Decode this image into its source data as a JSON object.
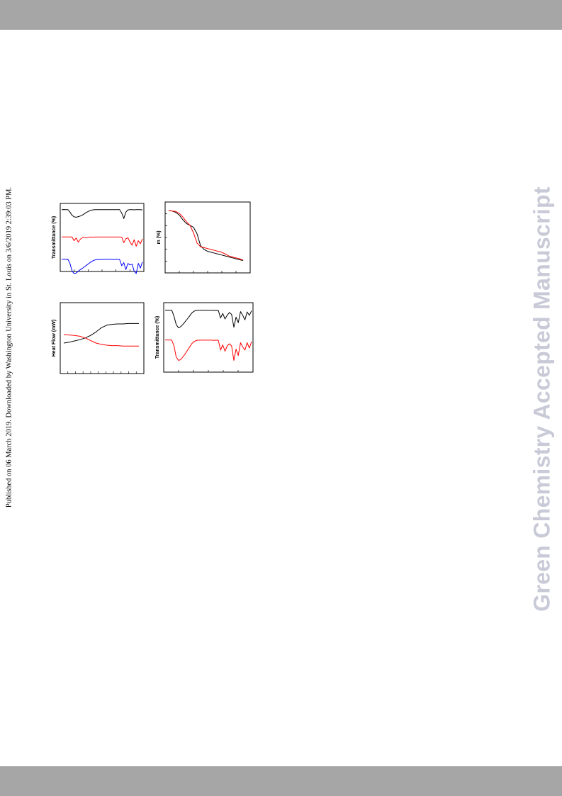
{
  "header_bar": {
    "color": "#a6a6a6"
  },
  "footer_bar": {
    "color": "#a6a6a6"
  },
  "side_note": "Published on 06 March 2019. Downloaded by Washington University in St. Louis on 3/6/2019 2:39:03 PM.",
  "watermark": {
    "text": "Green Chemistry Accepted Manuscript",
    "color": "#c9cad7"
  },
  "chart_data": [
    {
      "type": "line",
      "ylabel": "Transmittance (%)",
      "colors": [
        "#000000",
        "#ff0000",
        "#0000ff"
      ],
      "series": [
        {
          "values": [
            0.05,
            0.04,
            0.06,
            0.05,
            0.3,
            0.62,
            0.78,
            0.82,
            0.76,
            0.7,
            0.6,
            0.46,
            0.33,
            0.22,
            0.12,
            0.08,
            0.06,
            0.05,
            0.05,
            0.05,
            0.05,
            0.05,
            0.05,
            0.05,
            0.06,
            0.05,
            0.06,
            0.05,
            0.05,
            0.4,
            0.95,
            0.3,
            0.08,
            0.06,
            0.05,
            0.07,
            0.06,
            0.05,
            0.06,
            0.08
          ]
        },
        {
          "values": [
            0.02,
            0.02,
            0.02,
            0.02,
            0.03,
            0.02,
            0.4,
            0.12,
            0.55,
            0.25,
            0.1,
            0.05,
            0.12,
            0.06,
            0.03,
            0.04,
            0.03,
            0.03,
            0.03,
            0.03,
            0.03,
            0.03,
            0.03,
            0.03,
            0.03,
            0.03,
            0.03,
            0.03,
            0.03,
            0.05,
            0.6,
            0.2,
            0.1,
            0.55,
            0.85,
            0.3,
            0.95,
            0.4,
            0.7,
            0.2
          ]
        },
        {
          "values": [
            0.03,
            0.03,
            0.04,
            0.03,
            0.3,
            0.78,
            0.95,
            0.92,
            0.8,
            0.7,
            0.62,
            0.52,
            0.42,
            0.32,
            0.22,
            0.14,
            0.08,
            0.06,
            0.05,
            0.05,
            0.04,
            0.04,
            0.04,
            0.04,
            0.04,
            0.05,
            0.04,
            0.04,
            0.05,
            0.45,
            0.25,
            0.7,
            0.3,
            0.4,
            0.35,
            0.8,
            0.95,
            0.3,
            0.6,
            0.2
          ]
        }
      ]
    },
    {
      "type": "line",
      "ylabel": "m (%)",
      "colors": [
        "#000000",
        "#ff0000"
      ],
      "series": [
        {
          "values": [
            100,
            99.5,
            98,
            95,
            90,
            86,
            84,
            82,
            75,
            62,
            58,
            56,
            55,
            54,
            53,
            52,
            51,
            50,
            49,
            48,
            47,
            46
          ]
        },
        {
          "values": [
            100,
            99.5,
            99,
            97,
            93,
            88,
            84,
            76,
            65,
            61,
            60,
            59,
            58,
            57,
            56,
            55,
            53,
            51,
            50,
            49,
            48,
            46.5
          ]
        }
      ]
    },
    {
      "type": "line",
      "ylabel": "Heat Flow (mW)",
      "colors": [
        "#000000",
        "#ff0000"
      ],
      "series": [
        {
          "values": [
            0.3,
            0.32,
            0.35,
            0.38,
            0.42,
            0.48,
            0.56,
            0.66,
            0.72,
            0.74,
            0.75,
            0.75,
            0.76,
            0.76,
            0.76
          ]
        },
        {
          "values": [
            0.5,
            0.49,
            0.48,
            0.46,
            0.42,
            0.36,
            0.3,
            0.27,
            0.25,
            0.24,
            0.24,
            0.23,
            0.23,
            0.23,
            0.23
          ]
        }
      ]
    },
    {
      "type": "line",
      "ylabel": "Transmittance (%)",
      "colors": [
        "#000000",
        "#ff0000"
      ],
      "series": [
        {
          "values": [
            0.02,
            0.02,
            0.03,
            0.03,
            0.35,
            0.8,
            0.98,
            0.92,
            0.8,
            0.65,
            0.5,
            0.35,
            0.18,
            0.08,
            0.04,
            0.03,
            0.03,
            0.03,
            0.03,
            0.03,
            0.03,
            0.03,
            0.04,
            0.03,
            0.04,
            0.45,
            0.2,
            0.5,
            0.3,
            0.15,
            0.25,
            0.95,
            0.4,
            0.7,
            0.1,
            0.3,
            0.55,
            0.12,
            0.3,
            0.05
          ]
        },
        {
          "values": [
            0.02,
            0.02,
            0.02,
            0.03,
            0.3,
            0.82,
            0.98,
            0.95,
            0.82,
            0.68,
            0.52,
            0.36,
            0.2,
            0.1,
            0.05,
            0.03,
            0.03,
            0.03,
            0.03,
            0.03,
            0.03,
            0.03,
            0.04,
            0.03,
            0.04,
            0.5,
            0.25,
            0.55,
            0.3,
            0.2,
            0.3,
            0.98,
            0.45,
            0.75,
            0.15,
            0.35,
            0.5,
            0.15,
            0.4,
            0.1
          ]
        }
      ]
    }
  ]
}
